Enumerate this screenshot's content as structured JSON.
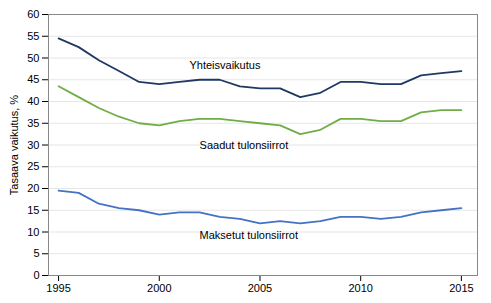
{
  "chart_data": {
    "type": "line",
    "x": [
      1995,
      1996,
      1997,
      1998,
      1999,
      2000,
      2001,
      2002,
      2003,
      2004,
      2005,
      2006,
      2007,
      2008,
      2009,
      2010,
      2011,
      2012,
      2013,
      2014,
      2015
    ],
    "series": [
      {
        "name": "Yhteisvaikutus",
        "color": "#1F3864",
        "values": [
          54.5,
          52.5,
          49.5,
          47.0,
          44.5,
          44.0,
          44.5,
          45.0,
          45.0,
          43.5,
          43.0,
          43.0,
          41.0,
          42.0,
          44.5,
          44.5,
          44.0,
          44.0,
          46.0,
          46.5,
          47.0
        ]
      },
      {
        "name": "Saadut tulonsiirrot",
        "color": "#70AD47",
        "values": [
          43.5,
          41.0,
          38.5,
          36.5,
          35.0,
          34.5,
          35.5,
          36.0,
          36.0,
          35.5,
          35.0,
          34.5,
          32.5,
          33.5,
          36.0,
          36.0,
          35.5,
          35.5,
          37.5,
          38.0,
          38.0
        ]
      },
      {
        "name": "Maksetut tulonsiirrot",
        "color": "#4472C4",
        "values": [
          19.5,
          19.0,
          16.5,
          15.5,
          15.0,
          14.0,
          14.5,
          14.5,
          13.5,
          13.0,
          12.0,
          12.5,
          12.0,
          12.5,
          13.5,
          13.5,
          13.0,
          13.5,
          14.5,
          15.0,
          15.5
        ]
      }
    ],
    "annotations": [
      {
        "text": "Yhteisvaikutus",
        "x": 2001.5,
        "y": 47.5
      },
      {
        "text": "Saadut tulonsiirrot",
        "x": 2002.0,
        "y": 29.0
      },
      {
        "text": "Maksetut tulonsiirrot",
        "x": 2002.0,
        "y": 8.5
      }
    ],
    "ylabel": "Tasaava vaikutus, %",
    "xlim": [
      1994.5,
      2015.8
    ],
    "xticks": [
      1995,
      2000,
      2005,
      2010,
      2015
    ],
    "ylim": [
      0,
      60
    ],
    "yticks": [
      0,
      5,
      10,
      15,
      20,
      25,
      30,
      35,
      40,
      45,
      50,
      55,
      60
    ],
    "grid": true
  }
}
